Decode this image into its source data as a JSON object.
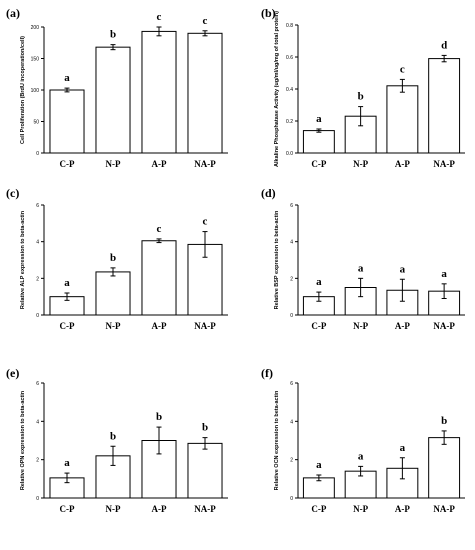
{
  "chart_data": [
    {
      "type": "bar",
      "panel_label": "(a)",
      "categories": [
        "C-P",
        "N-P",
        "A-P",
        "NA-P"
      ],
      "values": [
        100,
        168,
        193,
        190
      ],
      "errors": [
        3,
        4,
        7,
        4
      ],
      "significance": [
        "a",
        "b",
        "c",
        "c"
      ],
      "ylabel": "Cell Proliferation (BrdU incoperation/cell)",
      "ylim": [
        0,
        200
      ],
      "yticks": [
        "0",
        "50",
        "100",
        "150",
        "200"
      ]
    },
    {
      "type": "bar",
      "panel_label": "(b)",
      "categories": [
        "C-P",
        "N-P",
        "A-P",
        "NA-P"
      ],
      "values": [
        0.14,
        0.23,
        0.42,
        0.59
      ],
      "errors": [
        0.01,
        0.06,
        0.04,
        0.02
      ],
      "significance": [
        "a",
        "b",
        "c",
        "d"
      ],
      "ylabel": "Alkaline Phosphatase Activity (ug/ml/ug/mg of total protein)",
      "ylim": [
        0,
        0.8
      ],
      "yticks": [
        "0.0",
        "0.2",
        "0.4",
        "0.6",
        "0.8"
      ]
    },
    {
      "type": "bar",
      "panel_label": "(c)",
      "categories": [
        "C-P",
        "N-P",
        "A-P",
        "NA-P"
      ],
      "values": [
        1.0,
        2.35,
        4.05,
        3.85
      ],
      "errors": [
        0.2,
        0.22,
        0.1,
        0.7
      ],
      "significance": [
        "a",
        "b",
        "c",
        "c"
      ],
      "ylabel": "Relative ALP expression to beta-actin",
      "ylim": [
        0,
        6
      ],
      "yticks": [
        "0",
        "2",
        "4",
        "6"
      ]
    },
    {
      "type": "bar",
      "panel_label": "(d)",
      "categories": [
        "C-P",
        "N-P",
        "A-P",
        "NA-P"
      ],
      "values": [
        1.0,
        1.5,
        1.35,
        1.3
      ],
      "errors": [
        0.25,
        0.5,
        0.6,
        0.4
      ],
      "significance": [
        "a",
        "a",
        "a",
        "a"
      ],
      "ylabel": "Relative BSP expression to beta-actin",
      "ylim": [
        0,
        6
      ],
      "yticks": [
        "0",
        "2",
        "4",
        "6"
      ]
    },
    {
      "type": "bar",
      "panel_label": "(e)",
      "categories": [
        "C-P",
        "N-P",
        "A-P",
        "NA-P"
      ],
      "values": [
        1.05,
        2.2,
        3.0,
        2.85
      ],
      "errors": [
        0.25,
        0.5,
        0.7,
        0.3
      ],
      "significance": [
        "a",
        "b",
        "b",
        "b"
      ],
      "ylabel": "Relative OPN expression to beta-actin",
      "ylim": [
        0,
        6
      ],
      "yticks": [
        "0",
        "2",
        "4",
        "6"
      ]
    },
    {
      "type": "bar",
      "panel_label": "(f)",
      "categories": [
        "C-P",
        "N-P",
        "A-P",
        "NA-P"
      ],
      "values": [
        1.05,
        1.4,
        1.55,
        3.15
      ],
      "errors": [
        0.15,
        0.25,
        0.55,
        0.35
      ],
      "significance": [
        "a",
        "a",
        "a",
        "b"
      ],
      "ylabel": "Relative OCN expression to beta-actin",
      "ylim": [
        0,
        6
      ],
      "yticks": [
        "0",
        "2",
        "4",
        "6"
      ]
    }
  ]
}
